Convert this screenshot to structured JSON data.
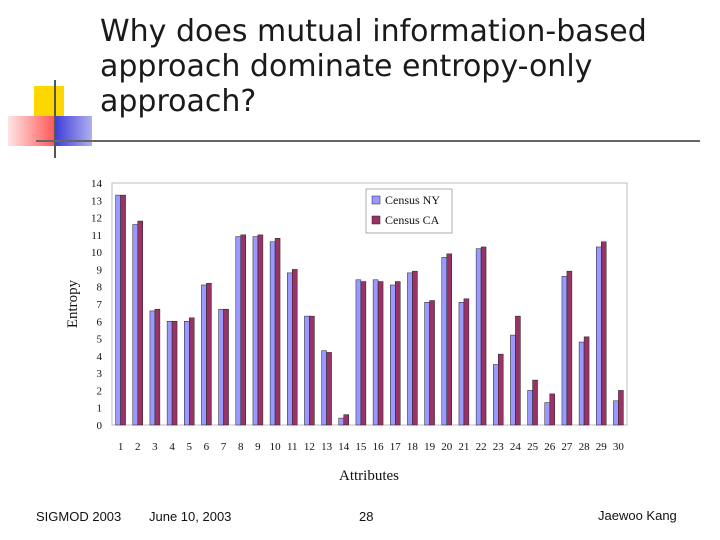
{
  "slide": {
    "title": "Why does mutual information-based approach dominate entropy-only approach?",
    "footer": {
      "venue": "SIGMOD 2003",
      "date": "June 10, 2003",
      "page_number": "28",
      "author": "Jaewoo Kang"
    },
    "deco_colors": {
      "yellow": "#ffd700",
      "red": "#ff5a5a",
      "blue": "#3a3ad6",
      "line": "#555555"
    }
  },
  "chart_data": {
    "type": "bar",
    "title": "",
    "xlabel": "Attributes",
    "ylabel": "Entropy",
    "ylim": [
      0,
      14
    ],
    "yticks": [
      0,
      1,
      2,
      3,
      4,
      5,
      6,
      7,
      8,
      9,
      10,
      11,
      12,
      13,
      14
    ],
    "grid": false,
    "legend": "top-right",
    "categories": [
      "1",
      "2",
      "3",
      "4",
      "5",
      "6",
      "7",
      "8",
      "9",
      "10",
      "11",
      "12",
      "13",
      "14",
      "15",
      "16",
      "17",
      "18",
      "19",
      "20",
      "21",
      "22",
      "23",
      "24",
      "25",
      "26",
      "27",
      "28",
      "29",
      "30"
    ],
    "series": [
      {
        "name": "Census NY",
        "color": "#9999ff",
        "values": [
          13.3,
          11.6,
          6.6,
          6.0,
          6.0,
          8.1,
          6.7,
          10.9,
          10.9,
          10.6,
          8.8,
          6.3,
          4.3,
          0.4,
          8.4,
          8.4,
          8.1,
          8.8,
          7.1,
          9.7,
          7.1,
          10.2,
          3.5,
          5.2,
          2.0,
          1.3,
          8.6,
          4.8,
          10.3,
          1.4
        ]
      },
      {
        "name": "Census CA",
        "color": "#993366",
        "values": [
          13.3,
          11.8,
          6.7,
          6.0,
          6.2,
          8.2,
          6.7,
          11.0,
          11.0,
          10.8,
          9.0,
          6.3,
          4.2,
          0.6,
          8.3,
          8.3,
          8.3,
          8.9,
          7.2,
          9.9,
          7.3,
          10.3,
          4.1,
          6.3,
          2.6,
          1.8,
          8.9,
          5.1,
          10.6,
          2.0
        ]
      }
    ]
  }
}
